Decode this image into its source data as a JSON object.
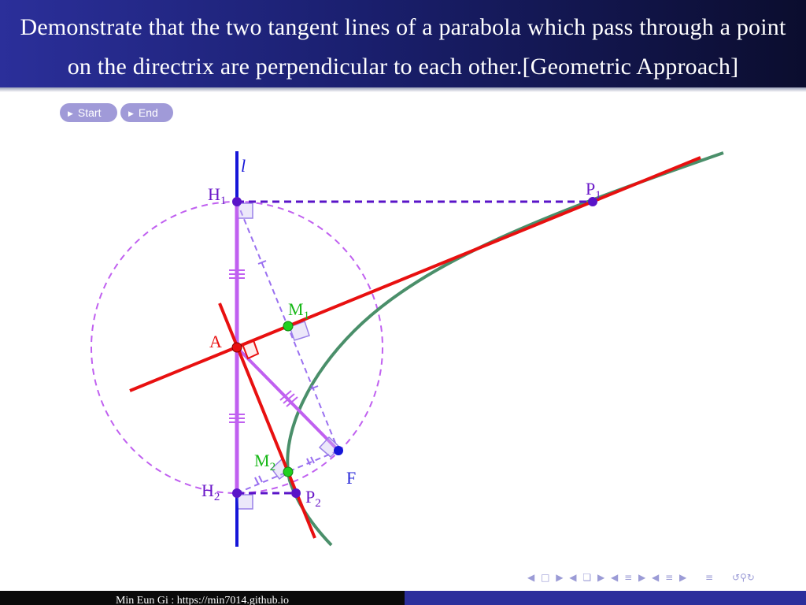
{
  "title": "Demonstrate that the two tangent lines of a parabola which pass through a point on the directrix are perpendicular to each other.[Geometric Approach]",
  "buttons": {
    "start": "Start",
    "end": "End"
  },
  "labels": {
    "directrix": "l",
    "H1": "H",
    "H1_sub": "1",
    "P1": "P",
    "P1_sub": "1",
    "M1": "M",
    "M1_sub": "1",
    "A": "A",
    "M2": "M",
    "M2_sub": "2",
    "F": "F",
    "H2": "H",
    "H2_sub": "2",
    "P2": "P",
    "P2_sub": "2"
  },
  "colors": {
    "directrix": "#1515d8",
    "segment": "#c060f0",
    "tangent": "#e81010",
    "parabola": "#4a8f6a",
    "point_purple": "#5a14c8",
    "point_green": "#20d020",
    "label_purple": "#6a18c8",
    "label_green": "#18b818",
    "label_blue": "#2a2ad8"
  },
  "nav_icons": [
    "nav-left-icon",
    "frame-icon",
    "nav-right-icon",
    "subsection-icon",
    "section-icon",
    "align-icon",
    "search-icon"
  ],
  "footer": {
    "author": "Min Eun Gi : https://min7014.github.io"
  }
}
